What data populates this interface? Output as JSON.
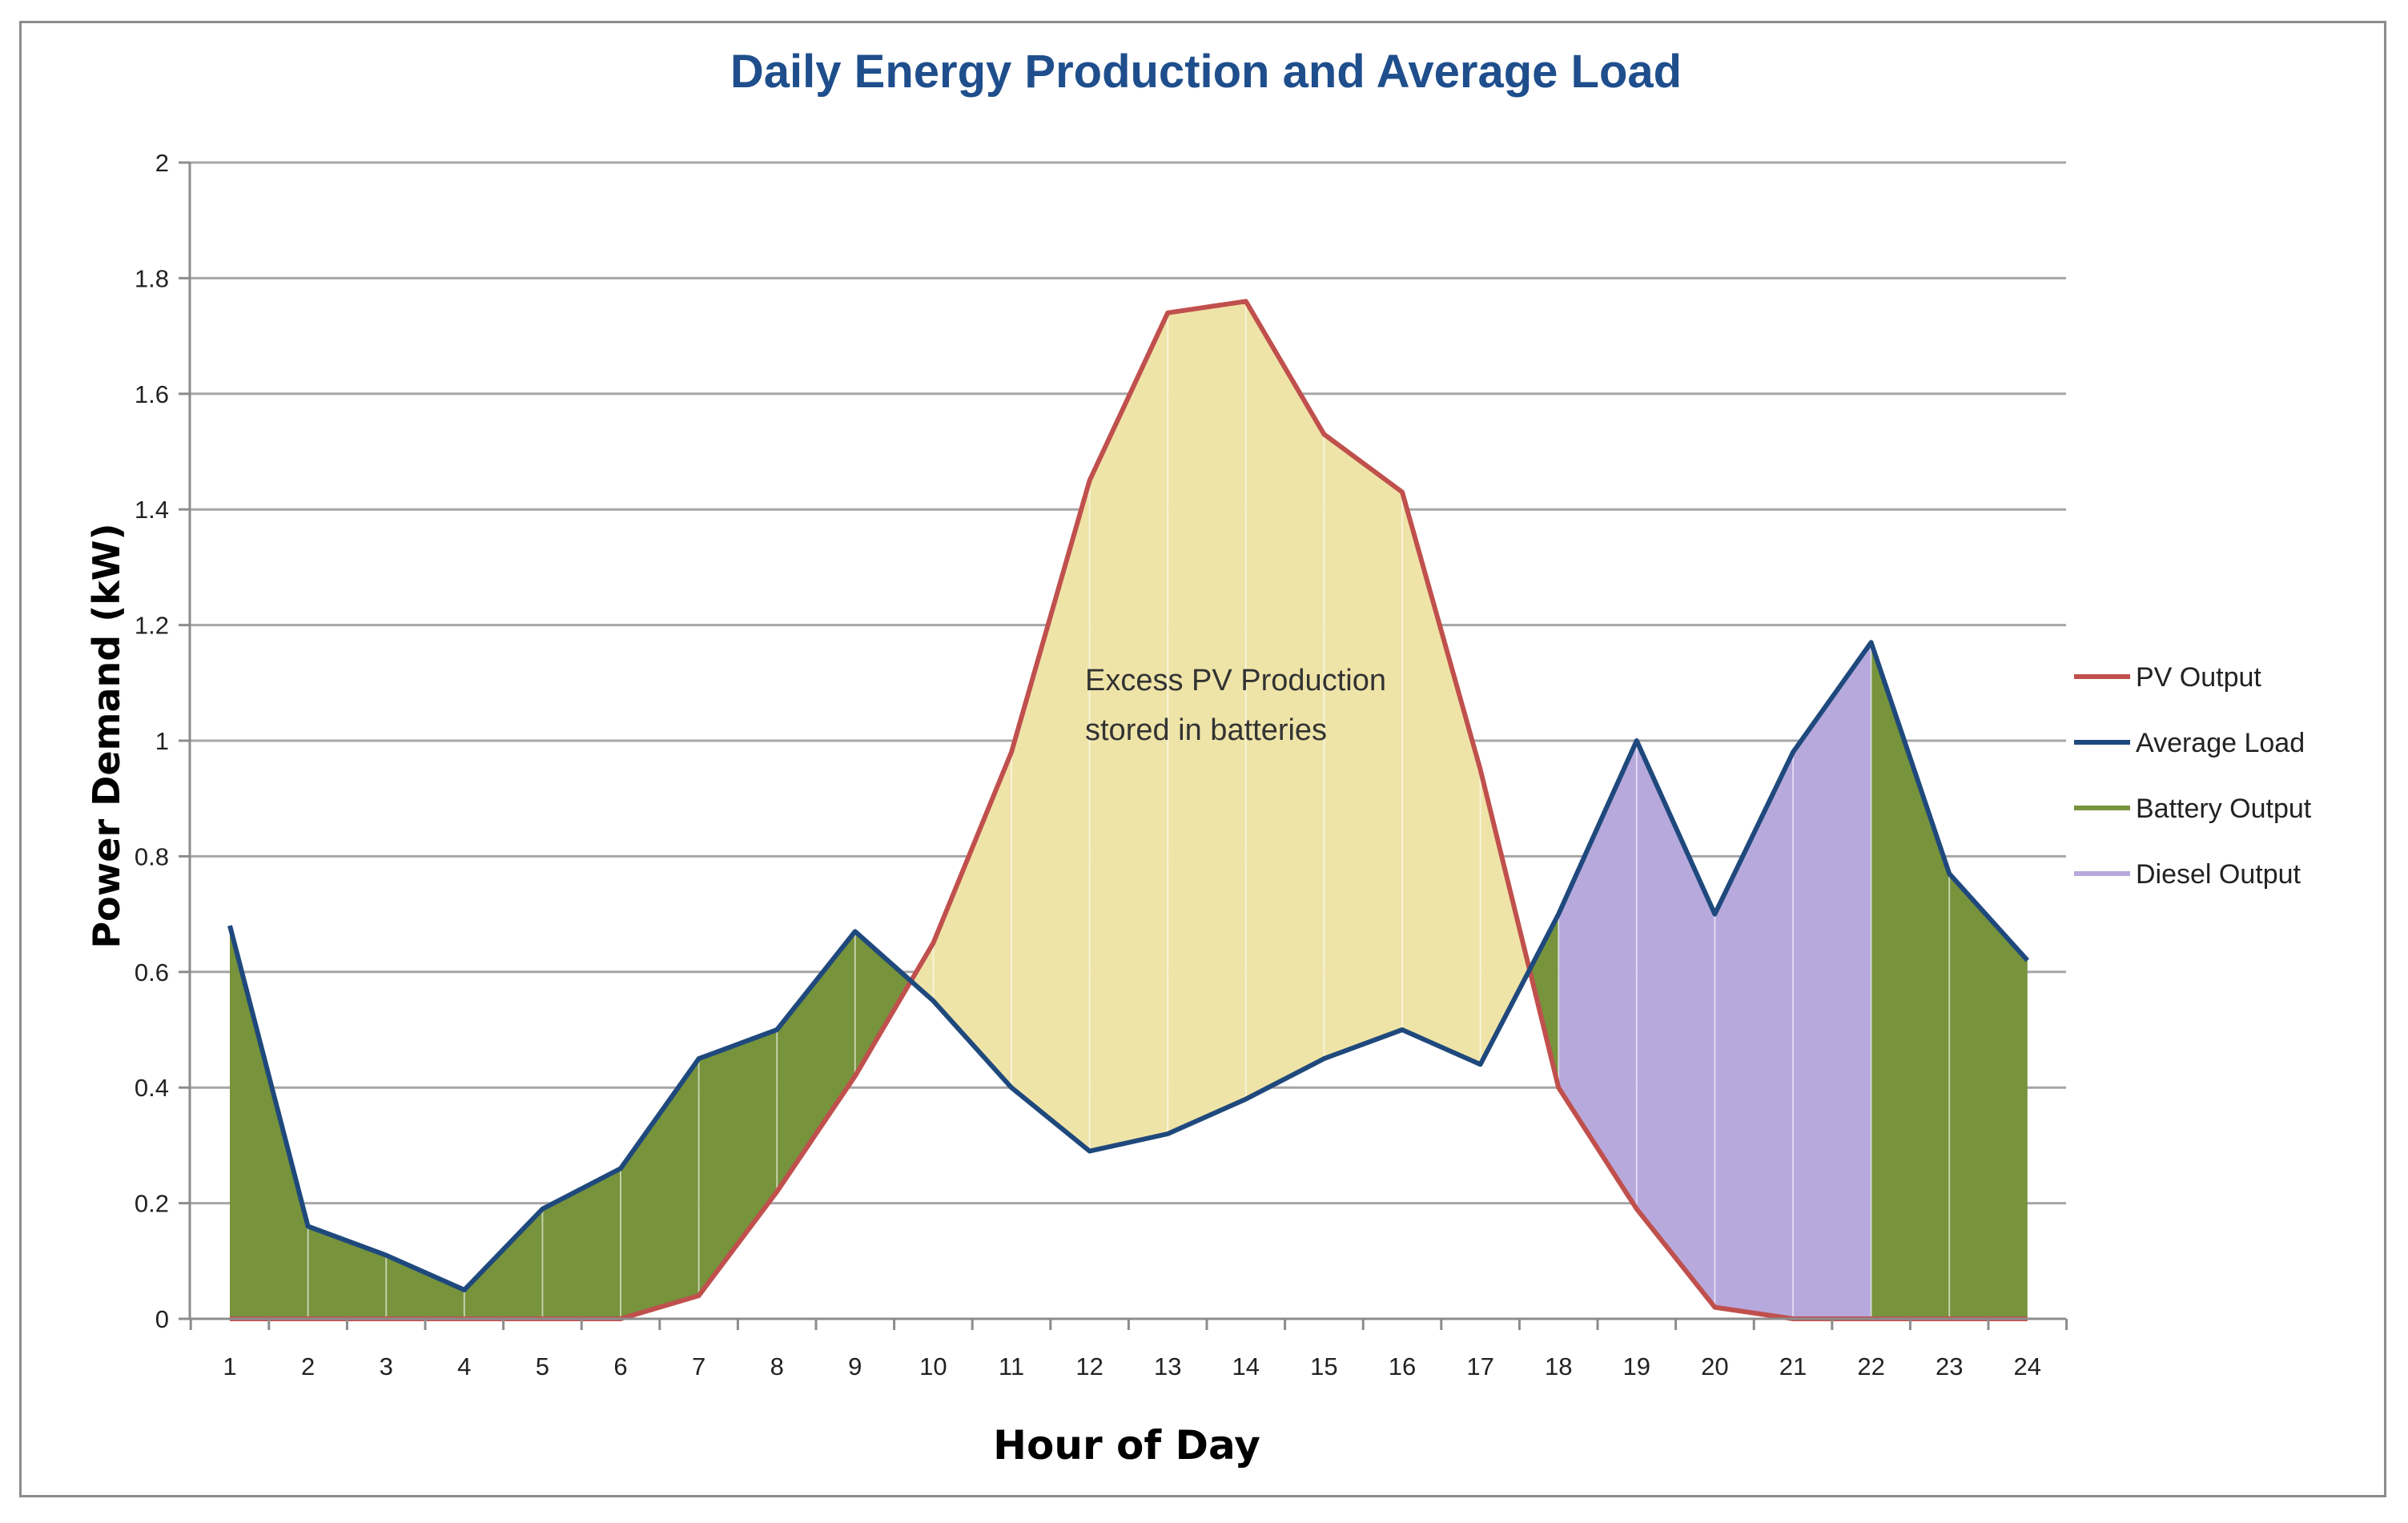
{
  "chart_data": {
    "type": "area",
    "title": "Daily Energy Production  and Average Load",
    "xlabel": "Hour of Day",
    "ylabel": "Power Demand  (kW)",
    "x": [
      1,
      2,
      3,
      4,
      5,
      6,
      7,
      8,
      9,
      10,
      11,
      12,
      13,
      14,
      15,
      16,
      17,
      18,
      19,
      20,
      21,
      22,
      23,
      24
    ],
    "xticks": [
      "1",
      "2",
      "3",
      "4",
      "5",
      "6",
      "7",
      "8",
      "9",
      "10",
      "11",
      "12",
      "13",
      "14",
      "15",
      "16",
      "17",
      "18",
      "19",
      "20",
      "21",
      "22",
      "23",
      "24"
    ],
    "ylim": [
      0,
      2
    ],
    "yticks": [
      "0",
      "0.2",
      "0.4",
      "0.6",
      "0.8",
      "1",
      "1.2",
      "1.4",
      "1.6",
      "1.8",
      "2"
    ],
    "grid": true,
    "legend_position": "right",
    "series": [
      {
        "name": "PV Output",
        "color": "#c0504d",
        "values": [
          0,
          0,
          0,
          0,
          0,
          0,
          0.04,
          0.22,
          0.42,
          0.65,
          0.98,
          1.45,
          1.74,
          1.76,
          1.53,
          1.43,
          0.95,
          0.4,
          0.19,
          0.02,
          0,
          0,
          0,
          0
        ]
      },
      {
        "name": "Average Load",
        "color": "#1f497d",
        "values": [
          0.68,
          0.16,
          0.11,
          0.05,
          0.19,
          0.26,
          0.45,
          0.5,
          0.67,
          0.55,
          0.4,
          0.29,
          0.32,
          0.38,
          0.45,
          0.5,
          0.44,
          0.7,
          1.0,
          0.7,
          0.98,
          1.17,
          0.77,
          0.62
        ]
      },
      {
        "name": "Battery Output",
        "color": "#77933c"
      },
      {
        "name": "Diesel Output",
        "color": "#b7a9dc"
      }
    ],
    "annotation": [
      "Excess PV Production",
      "stored in batteries"
    ],
    "excess_fill_color": "#efe4a8"
  }
}
